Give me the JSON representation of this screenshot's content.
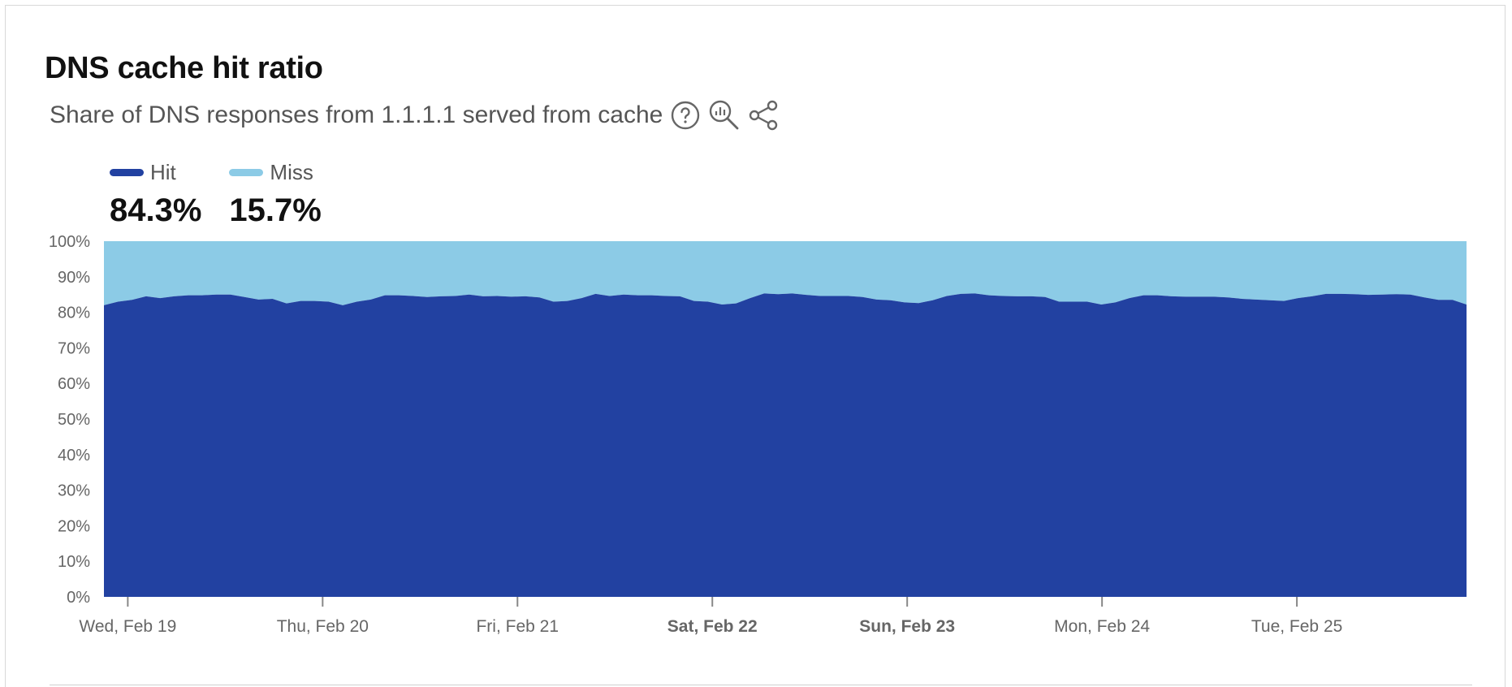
{
  "header": {
    "title": "DNS cache hit ratio",
    "subtitle": "Share of DNS responses from 1.1.1.1 served from cache"
  },
  "icons": {
    "help": "question-circle-icon",
    "explore": "zoom-chart-icon",
    "share": "share-icon"
  },
  "legend": [
    {
      "label": "Hit",
      "value": "84.3%",
      "color": "#2241a1"
    },
    {
      "label": "Miss",
      "value": "15.7%",
      "color": "#8ccbe6"
    }
  ],
  "chart_data": {
    "type": "area",
    "stacked": true,
    "series": [
      {
        "name": "Hit",
        "color": "#2241a1",
        "values": [
          82,
          83,
          83.5,
          84.5,
          84,
          84.5,
          84.8,
          84.8,
          85,
          85,
          84.3,
          83.6,
          83.8,
          82.5,
          83.2,
          83.2,
          83,
          82,
          83,
          83.6,
          84.8,
          84.8,
          84.6,
          84.3,
          84.5,
          84.6,
          85,
          84.5,
          84.6,
          84.4,
          84.5,
          84.2,
          83,
          83.2,
          84,
          85.2,
          84.6,
          85,
          84.8,
          84.8,
          84.6,
          84.5,
          83.2,
          83,
          82.2,
          82.5,
          84,
          85.3,
          85.1,
          85.3,
          84.9,
          84.6,
          84.6,
          84.6,
          84.3,
          83.6,
          83.4,
          82.8,
          82.6,
          83.4,
          84.6,
          85.2,
          85.3,
          84.8,
          84.6,
          84.5,
          84.5,
          84.3,
          83,
          83,
          83,
          82.2,
          82.8,
          84,
          84.8,
          84.8,
          84.5,
          84.4,
          84.4,
          84.4,
          84.2,
          83.8,
          83.6,
          83.4,
          83.2,
          84,
          84.5,
          85.2,
          85.2,
          85.1,
          84.9,
          85,
          85.1,
          85,
          84.2,
          83.5,
          83.5,
          82.2
        ]
      },
      {
        "name": "Miss",
        "color": "#8ccbe6",
        "values": [
          18,
          17,
          16.5,
          15.5,
          16,
          15.5,
          15.2,
          15.2,
          15,
          15,
          15.7,
          16.4,
          16.2,
          17.5,
          16.8,
          16.8,
          17,
          18,
          17,
          16.4,
          15.2,
          15.2,
          15.4,
          15.7,
          15.5,
          15.4,
          15,
          15.5,
          15.4,
          15.6,
          15.5,
          15.8,
          17,
          16.8,
          16,
          14.8,
          15.4,
          15,
          15.2,
          15.2,
          15.4,
          15.5,
          16.8,
          17,
          17.8,
          17.5,
          16,
          14.7,
          14.9,
          14.7,
          15.1,
          15.4,
          15.4,
          15.4,
          15.7,
          16.4,
          16.6,
          17.2,
          17.4,
          16.6,
          15.4,
          14.8,
          14.7,
          15.2,
          15.4,
          15.5,
          15.5,
          15.7,
          17,
          17,
          17,
          17.8,
          17.2,
          16,
          15.2,
          15.2,
          15.5,
          15.6,
          15.6,
          15.6,
          15.8,
          16.2,
          16.4,
          16.6,
          16.8,
          16,
          15.5,
          14.8,
          14.8,
          14.9,
          15.1,
          15,
          14.9,
          15,
          15.8,
          16.5,
          16.5,
          17.8
        ]
      }
    ],
    "x_labels": [
      {
        "text": "Wed, Feb 19",
        "pos": 0.0175,
        "bold": false
      },
      {
        "text": "Thu, Feb 20",
        "pos": 0.1605,
        "bold": false
      },
      {
        "text": "Fri, Feb 21",
        "pos": 0.3035,
        "bold": false
      },
      {
        "text": "Sat, Feb 22",
        "pos": 0.4465,
        "bold": true
      },
      {
        "text": "Sun, Feb 23",
        "pos": 0.5895,
        "bold": true
      },
      {
        "text": "Mon, Feb 24",
        "pos": 0.7325,
        "bold": false
      },
      {
        "text": "Tue, Feb 25",
        "pos": 0.8755,
        "bold": false
      }
    ],
    "y_ticks": [
      "0%",
      "10%",
      "20%",
      "30%",
      "40%",
      "50%",
      "60%",
      "70%",
      "80%",
      "90%",
      "100%"
    ],
    "ylim": [
      0,
      100
    ]
  }
}
